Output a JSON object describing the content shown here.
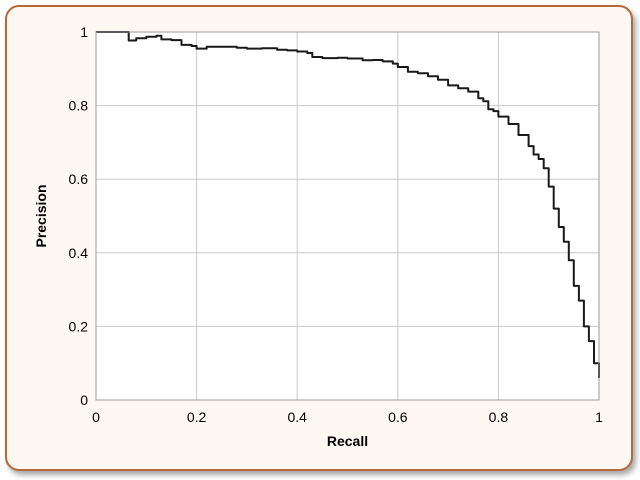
{
  "chart_data": {
    "type": "line",
    "title": "",
    "xlabel": "Recall",
    "ylabel": "Precision",
    "xlim": [
      0,
      1
    ],
    "ylim": [
      0,
      1
    ],
    "grid": true,
    "legend": "none",
    "x_ticks": [
      "0",
      "0.2",
      "0.4",
      "0.6",
      "0.8",
      "1"
    ],
    "y_ticks": [
      "0",
      "0.2",
      "0.4",
      "0.6",
      "0.8",
      "1"
    ],
    "colors": {
      "frame_border": "#b8693b",
      "frame_background": "#fdf8f1",
      "plot_background": "#ffffff",
      "grid": "#c8c8c8",
      "line": "#1a1a1a"
    },
    "series": [
      {
        "x": [
          0,
          0.06,
          0.065,
          0.08,
          0.1,
          0.12,
          0.13,
          0.15,
          0.17,
          0.19,
          0.2,
          0.22,
          0.25,
          0.28,
          0.3,
          0.33,
          0.36,
          0.38,
          0.4,
          0.42,
          0.43,
          0.45,
          0.48,
          0.5,
          0.53,
          0.55,
          0.57,
          0.59,
          0.6,
          0.62,
          0.64,
          0.66,
          0.68,
          0.7,
          0.72,
          0.74,
          0.76,
          0.77,
          0.78,
          0.79,
          0.8,
          0.82,
          0.84,
          0.86,
          0.87,
          0.88,
          0.89,
          0.9,
          0.91,
          0.92,
          0.93,
          0.94,
          0.95,
          0.96,
          0.97,
          0.98,
          0.99,
          1.0
        ],
        "y": [
          1.0,
          1.0,
          0.977,
          0.983,
          0.987,
          0.99,
          0.98,
          0.978,
          0.965,
          0.962,
          0.955,
          0.96,
          0.96,
          0.957,
          0.955,
          0.956,
          0.952,
          0.95,
          0.947,
          0.943,
          0.932,
          0.929,
          0.93,
          0.928,
          0.923,
          0.924,
          0.92,
          0.914,
          0.905,
          0.892,
          0.888,
          0.88,
          0.87,
          0.855,
          0.847,
          0.838,
          0.82,
          0.812,
          0.79,
          0.785,
          0.77,
          0.75,
          0.72,
          0.69,
          0.667,
          0.655,
          0.63,
          0.58,
          0.52,
          0.47,
          0.43,
          0.38,
          0.31,
          0.27,
          0.2,
          0.16,
          0.1,
          0.06
        ]
      }
    ]
  }
}
